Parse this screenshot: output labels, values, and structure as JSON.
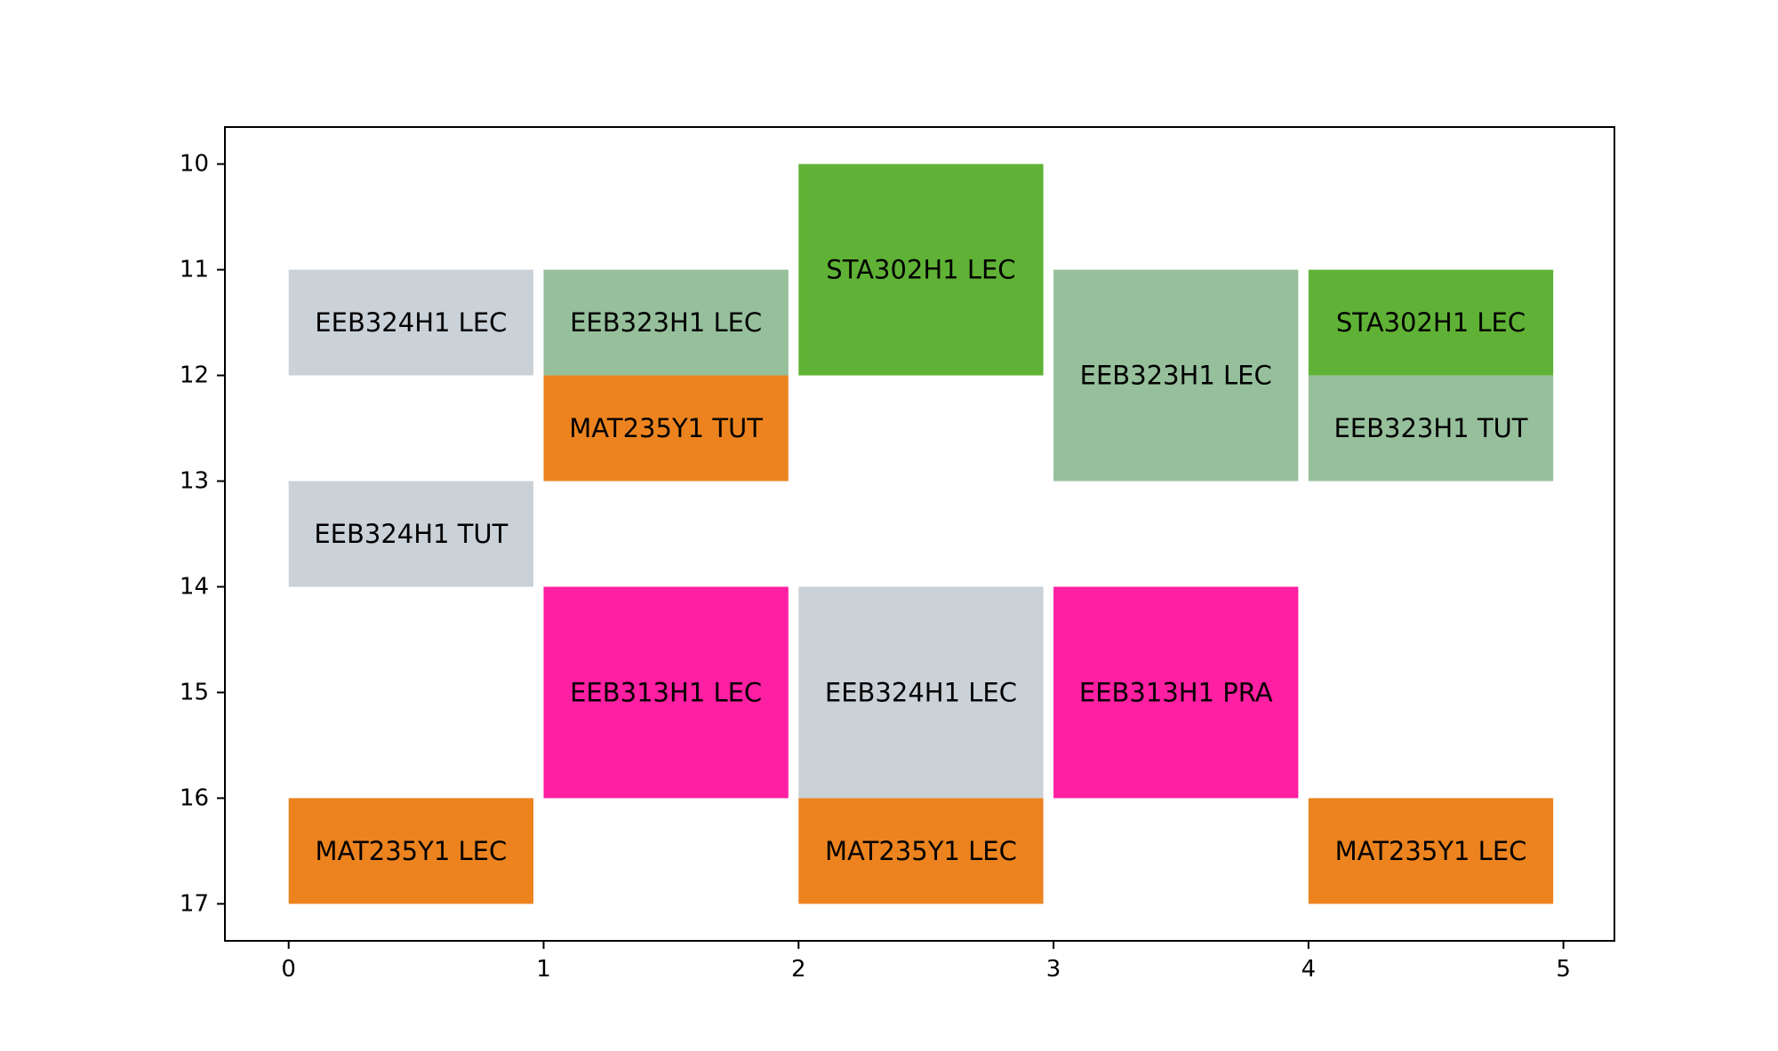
{
  "chart_data": {
    "type": "timetable",
    "xlim": [
      -0.25,
      5.2
    ],
    "ylim": [
      17.35,
      9.65
    ],
    "y_inverted": true,
    "xticks": [
      0,
      1,
      2,
      3,
      4,
      5
    ],
    "yticks": [
      10,
      11,
      12,
      13,
      14,
      15,
      16,
      17
    ],
    "grid": false,
    "legend": "none",
    "blocks": [
      {
        "day": 0,
        "start": 11,
        "end": 12,
        "label": "EEB324H1 LEC",
        "color": "#cad1d7"
      },
      {
        "day": 0,
        "start": 13,
        "end": 14,
        "label": "EEB324H1 TUT",
        "color": "#cad1d7"
      },
      {
        "day": 0,
        "start": 16,
        "end": 17,
        "label": "MAT235Y1 LEC",
        "color": "#ec831f"
      },
      {
        "day": 1,
        "start": 11,
        "end": 12,
        "label": "EEB323H1 LEC",
        "color": "#96bf9b"
      },
      {
        "day": 1,
        "start": 12,
        "end": 13,
        "label": "MAT235Y1 TUT",
        "color": "#ec831f"
      },
      {
        "day": 1,
        "start": 14,
        "end": 16,
        "label": "EEB313H1 LEC",
        "color": "#ff1fa2"
      },
      {
        "day": 2,
        "start": 10,
        "end": 12,
        "label": "STA302H1 LEC",
        "color": "#5fb235"
      },
      {
        "day": 2,
        "start": 14,
        "end": 16,
        "label": "EEB324H1 LEC",
        "color": "#cad1d7"
      },
      {
        "day": 2,
        "start": 16,
        "end": 17,
        "label": "MAT235Y1 LEC",
        "color": "#ec831f"
      },
      {
        "day": 3,
        "start": 11,
        "end": 13,
        "label": "EEB323H1 LEC",
        "color": "#96bf9b"
      },
      {
        "day": 3,
        "start": 14,
        "end": 16,
        "label": "EEB313H1 PRA",
        "color": "#ff1fa2"
      },
      {
        "day": 4,
        "start": 11,
        "end": 12,
        "label": "STA302H1 LEC",
        "color": "#5fb235"
      },
      {
        "day": 4,
        "start": 12,
        "end": 13,
        "label": "EEB323H1 TUT",
        "color": "#96bf9b"
      },
      {
        "day": 4,
        "start": 16,
        "end": 17,
        "label": "MAT235Y1 LEC",
        "color": "#ec831f"
      }
    ]
  }
}
